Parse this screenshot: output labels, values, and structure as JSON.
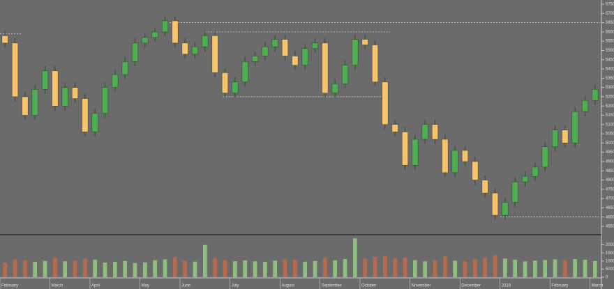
{
  "chart_data": {
    "type": "candlestick",
    "categories": [
      "February",
      null,
      null,
      null,
      null,
      "March",
      null,
      null,
      null,
      "April",
      null,
      null,
      null,
      null,
      "May",
      null,
      null,
      null,
      "June",
      null,
      null,
      null,
      null,
      "July",
      null,
      null,
      null,
      null,
      "August",
      null,
      null,
      null,
      "September",
      null,
      null,
      null,
      "October",
      null,
      null,
      null,
      null,
      "November",
      null,
      null,
      null,
      null,
      "December",
      null,
      null,
      null,
      "2018",
      null,
      null,
      null,
      null,
      "February",
      null,
      null,
      null,
      "March"
    ],
    "open": [
      5580,
      5540,
      5250,
      5150,
      5290,
      5390,
      5200,
      5300,
      5240,
      5060,
      5160,
      5300,
      5370,
      5440,
      5540,
      5570,
      5600,
      5660,
      5540,
      5480,
      5520,
      5580,
      5380,
      5270,
      5330,
      5440,
      5470,
      5520,
      5560,
      5470,
      5420,
      5510,
      5540,
      5270,
      5320,
      5420,
      5560,
      5530,
      5330,
      5100,
      5060,
      4880,
      5020,
      5100,
      5020,
      4840,
      4960,
      4900,
      4800,
      4730,
      4610,
      4680,
      4790,
      4820,
      4870,
      4980,
      5070,
      5000,
      5170,
      5230
    ],
    "high": [
      5605,
      5565,
      5275,
      5315,
      5415,
      5415,
      5325,
      5325,
      5265,
      5185,
      5325,
      5395,
      5465,
      5565,
      5595,
      5625,
      5685,
      5685,
      5565,
      5545,
      5605,
      5605,
      5405,
      5355,
      5465,
      5495,
      5545,
      5585,
      5585,
      5495,
      5535,
      5565,
      5565,
      5345,
      5445,
      5585,
      5585,
      5555,
      5355,
      5125,
      5085,
      5045,
      5125,
      5125,
      5045,
      4985,
      4985,
      4925,
      4825,
      4755,
      4705,
      4815,
      4845,
      4895,
      5005,
      5095,
      5095,
      5195,
      5255,
      5315
    ],
    "low": [
      5515,
      5225,
      5125,
      5125,
      5265,
      5175,
      5175,
      5215,
      5035,
      5035,
      5135,
      5275,
      5345,
      5415,
      5515,
      5545,
      5575,
      5515,
      5455,
      5455,
      5495,
      5355,
      5245,
      5245,
      5305,
      5415,
      5445,
      5495,
      5445,
      5395,
      5395,
      5485,
      5245,
      5245,
      5295,
      5395,
      5505,
      5305,
      5075,
      5035,
      4855,
      4855,
      4995,
      4995,
      4815,
      4815,
      4875,
      4775,
      4705,
      4585,
      4585,
      4655,
      4765,
      4795,
      4845,
      4955,
      4975,
      4975,
      5145,
      5205
    ],
    "close": [
      5540,
      5250,
      5150,
      5290,
      5390,
      5200,
      5300,
      5240,
      5060,
      5160,
      5300,
      5370,
      5440,
      5540,
      5570,
      5600,
      5660,
      5540,
      5480,
      5520,
      5580,
      5380,
      5270,
      5330,
      5440,
      5470,
      5520,
      5560,
      5470,
      5420,
      5510,
      5540,
      5270,
      5320,
      5420,
      5560,
      5530,
      5330,
      5100,
      5060,
      4880,
      5020,
      5100,
      5020,
      4840,
      4960,
      4900,
      4800,
      4730,
      4610,
      4680,
      4790,
      4820,
      4870,
      4980,
      5070,
      5000,
      5170,
      5230,
      5290
    ],
    "volume": [
      9000,
      11000,
      10500,
      9500,
      10000,
      12000,
      9800,
      10200,
      11500,
      10800,
      9000,
      9500,
      10000,
      8800,
      9200,
      10500,
      11000,
      12500,
      10000,
      9600,
      20000,
      11800,
      10500,
      9900,
      10400,
      9800,
      9500,
      10200,
      11000,
      10800,
      9600,
      10000,
      12000,
      10400,
      11200,
      24000,
      11500,
      12500,
      13000,
      11800,
      12200,
      10500,
      9800,
      10400,
      12800,
      10200,
      9900,
      11000,
      12000,
      13500,
      11500,
      10800,
      9800,
      10200,
      10600,
      11000,
      10400,
      11200,
      10800,
      10000
    ],
    "up_color": "#4caf50",
    "down_color": "#f7c46c",
    "up_volume_color": "#8fbf7f",
    "down_volume_color": "#b86a4a",
    "ylim": [
      4550,
      5750
    ],
    "yticks": [
      4550,
      4600,
      4650,
      4700,
      4750,
      4800,
      4850,
      4900,
      4950,
      5000,
      5050,
      5100,
      5150,
      5200,
      5250,
      5300,
      5350,
      5400,
      5450,
      5500,
      5550,
      5600,
      5650,
      5700,
      5750
    ],
    "volume_lim": [
      0,
      25000
    ],
    "volume_ticks": [
      0,
      5000,
      10000,
      15000,
      20000
    ],
    "levels": [
      5590,
      5650,
      5600,
      5250,
      4600
    ]
  }
}
